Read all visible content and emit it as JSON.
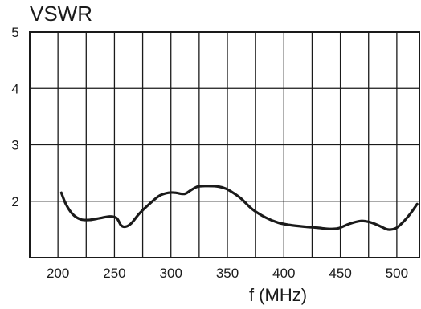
{
  "chart_data": {
    "type": "line",
    "title": "",
    "xlabel": "f (MHz)",
    "ylabel": "VSWR",
    "xlim": [
      175,
      520
    ],
    "ylim": [
      1,
      5
    ],
    "x_ticks": [
      200,
      250,
      300,
      350,
      400,
      450,
      500
    ],
    "x_tick_labels": [
      "200",
      "250",
      "300",
      "350",
      "400",
      "450",
      "500"
    ],
    "y_ticks": [
      2,
      3,
      4,
      5
    ],
    "y_tick_labels": [
      "2",
      "3",
      "4",
      "5"
    ],
    "x_grid_lines": [
      200,
      225,
      250,
      275,
      300,
      325,
      350,
      375,
      400,
      425,
      450,
      475,
      500
    ],
    "y_grid_lines": [
      2,
      3,
      4
    ],
    "grid": true,
    "legend": "none",
    "colors": {
      "line": "#1a1a1a",
      "grid": "#1a1a1a",
      "frame": "#1a1a1a"
    },
    "series": [
      {
        "x": [
          203,
          207,
          213,
          220,
          228,
          237,
          246,
          252,
          256,
          260,
          265,
          272,
          282,
          290,
          298,
          304,
          312,
          318,
          324,
          333,
          342,
          349,
          355,
          362,
          372,
          384,
          395,
          405,
          418,
          430,
          440,
          448,
          458,
          468,
          476,
          484,
          492,
          499,
          505,
          512,
          518
        ],
        "values": [
          2.15,
          1.95,
          1.77,
          1.68,
          1.67,
          1.7,
          1.73,
          1.7,
          1.57,
          1.55,
          1.61,
          1.78,
          1.97,
          2.1,
          2.15,
          2.15,
          2.13,
          2.2,
          2.26,
          2.27,
          2.26,
          2.22,
          2.15,
          2.05,
          1.86,
          1.71,
          1.62,
          1.58,
          1.55,
          1.53,
          1.51,
          1.52,
          1.6,
          1.65,
          1.63,
          1.57,
          1.5,
          1.52,
          1.62,
          1.78,
          1.95
        ]
      }
    ]
  }
}
